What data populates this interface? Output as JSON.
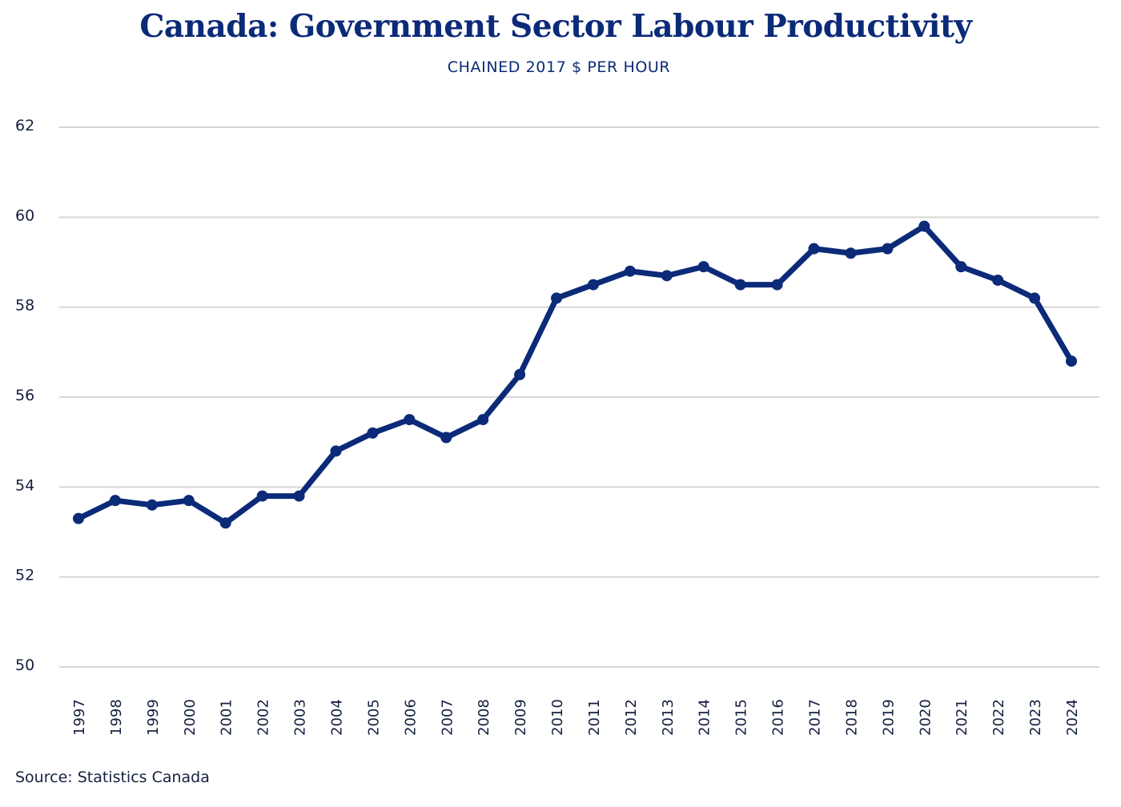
{
  "chart_data": {
    "type": "line",
    "title": "Canada: Government Sector Labour Productivity",
    "subtitle": "CHAINED 2017 $ PER HOUR",
    "xlabel": "",
    "ylabel": "",
    "ylim": [
      50,
      62
    ],
    "yticks": [
      50,
      52,
      54,
      56,
      58,
      60,
      62
    ],
    "grid": true,
    "legend": "none",
    "line_color": "#0b2a78",
    "categories": [
      "1997",
      "1998",
      "1999",
      "2000",
      "2001",
      "2002",
      "2003",
      "2004",
      "2005",
      "2006",
      "2007",
      "2008",
      "2009",
      "2010",
      "2011",
      "2012",
      "2013",
      "2014",
      "2015",
      "2016",
      "2017",
      "2018",
      "2019",
      "2020",
      "2021",
      "2022",
      "2023",
      "2024"
    ],
    "series": [
      {
        "name": "Government Sector Labour Productivity",
        "values": [
          53.3,
          53.7,
          53.6,
          53.7,
          53.2,
          53.8,
          53.8,
          54.8,
          55.2,
          55.5,
          55.1,
          55.5,
          56.5,
          58.2,
          58.5,
          58.8,
          58.7,
          58.9,
          58.5,
          58.5,
          59.3,
          59.2,
          59.3,
          59.8,
          58.9,
          58.6,
          58.2,
          56.8
        ]
      }
    ],
    "source": "Source: Statistics Canada"
  }
}
